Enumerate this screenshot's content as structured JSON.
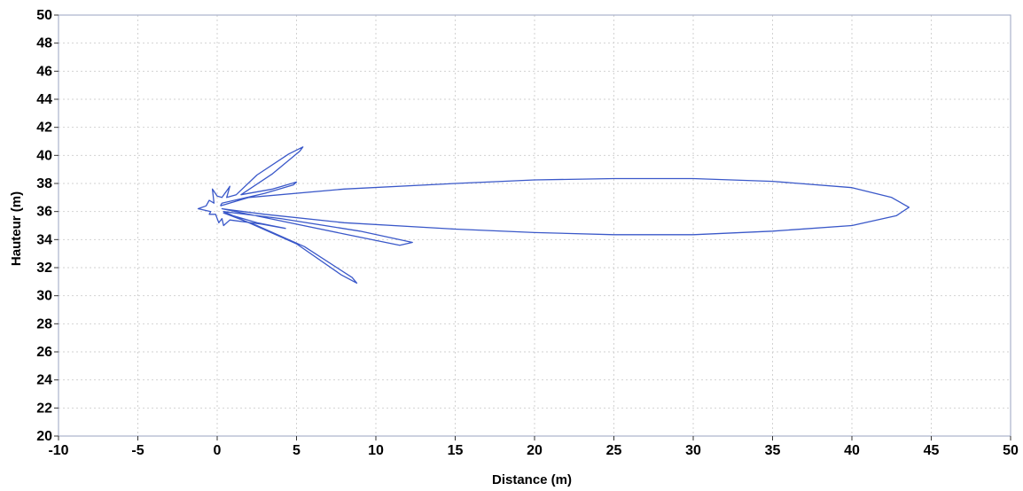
{
  "chart_data": {
    "type": "line",
    "title": "",
    "xlabel": "Distance (m)",
    "ylabel": "Hauteur (m)",
    "xlim": [
      -10,
      50
    ],
    "ylim": [
      20,
      50
    ],
    "x_ticks": [
      -10,
      -5,
      0,
      5,
      10,
      15,
      20,
      25,
      30,
      35,
      40,
      45,
      50
    ],
    "y_ticks": [
      20,
      22,
      24,
      26,
      28,
      30,
      32,
      34,
      36,
      38,
      40,
      42,
      44,
      46,
      48,
      50
    ],
    "grid": true,
    "line_color": "#3a58c9",
    "series": [
      {
        "points": [
          [
            0.2,
            36.4
          ],
          [
            2,
            37.0
          ],
          [
            8,
            37.6
          ],
          [
            15,
            38.0
          ],
          [
            20,
            38.25
          ],
          [
            25,
            38.35
          ],
          [
            30,
            38.35
          ],
          [
            35,
            38.15
          ],
          [
            40,
            37.7
          ],
          [
            42.5,
            37.0
          ],
          [
            43.6,
            36.3
          ],
          [
            42.8,
            35.7
          ],
          [
            40,
            35.0
          ],
          [
            35,
            34.6
          ],
          [
            30,
            34.35
          ],
          [
            25,
            34.35
          ],
          [
            20,
            34.5
          ],
          [
            15,
            34.75
          ],
          [
            8,
            35.2
          ],
          [
            3,
            35.8
          ],
          [
            0.3,
            36.2
          ],
          [
            8,
            34.4
          ],
          [
            11.5,
            33.6
          ],
          [
            12.3,
            33.8
          ],
          [
            9,
            34.6
          ],
          [
            4,
            35.5
          ],
          [
            0.4,
            36.0
          ],
          [
            5,
            33.7
          ],
          [
            7.8,
            31.5
          ],
          [
            8.8,
            30.9
          ],
          [
            8.5,
            31.3
          ],
          [
            5.5,
            33.5
          ],
          [
            2.5,
            35.0
          ],
          [
            0.4,
            35.9
          ],
          [
            2.5,
            35.2
          ],
          [
            4.3,
            34.8
          ],
          [
            2.8,
            35.1
          ],
          [
            0.8,
            35.4
          ],
          [
            0.4,
            35.0
          ],
          [
            0.3,
            35.5
          ],
          [
            0.1,
            35.2
          ],
          [
            -0.1,
            35.8
          ],
          [
            -0.5,
            35.8
          ],
          [
            -0.4,
            36.0
          ],
          [
            -1.2,
            36.2
          ],
          [
            -0.7,
            36.4
          ],
          [
            -0.5,
            36.8
          ],
          [
            -0.2,
            36.6
          ],
          [
            -0.3,
            37.6
          ],
          [
            0,
            37.1
          ],
          [
            0.3,
            37.0
          ],
          [
            0.8,
            37.8
          ],
          [
            0.6,
            37.0
          ],
          [
            1.2,
            37.2
          ],
          [
            2.5,
            38.6
          ],
          [
            4.5,
            40.1
          ],
          [
            5.4,
            40.6
          ],
          [
            5.2,
            40.3
          ],
          [
            3.5,
            38.7
          ],
          [
            1.5,
            37.2
          ],
          [
            3.5,
            37.6
          ],
          [
            5.0,
            38.1
          ],
          [
            4.8,
            37.9
          ],
          [
            3.0,
            37.3
          ],
          [
            0.3,
            36.6
          ],
          [
            0.2,
            36.4
          ]
        ]
      }
    ]
  }
}
